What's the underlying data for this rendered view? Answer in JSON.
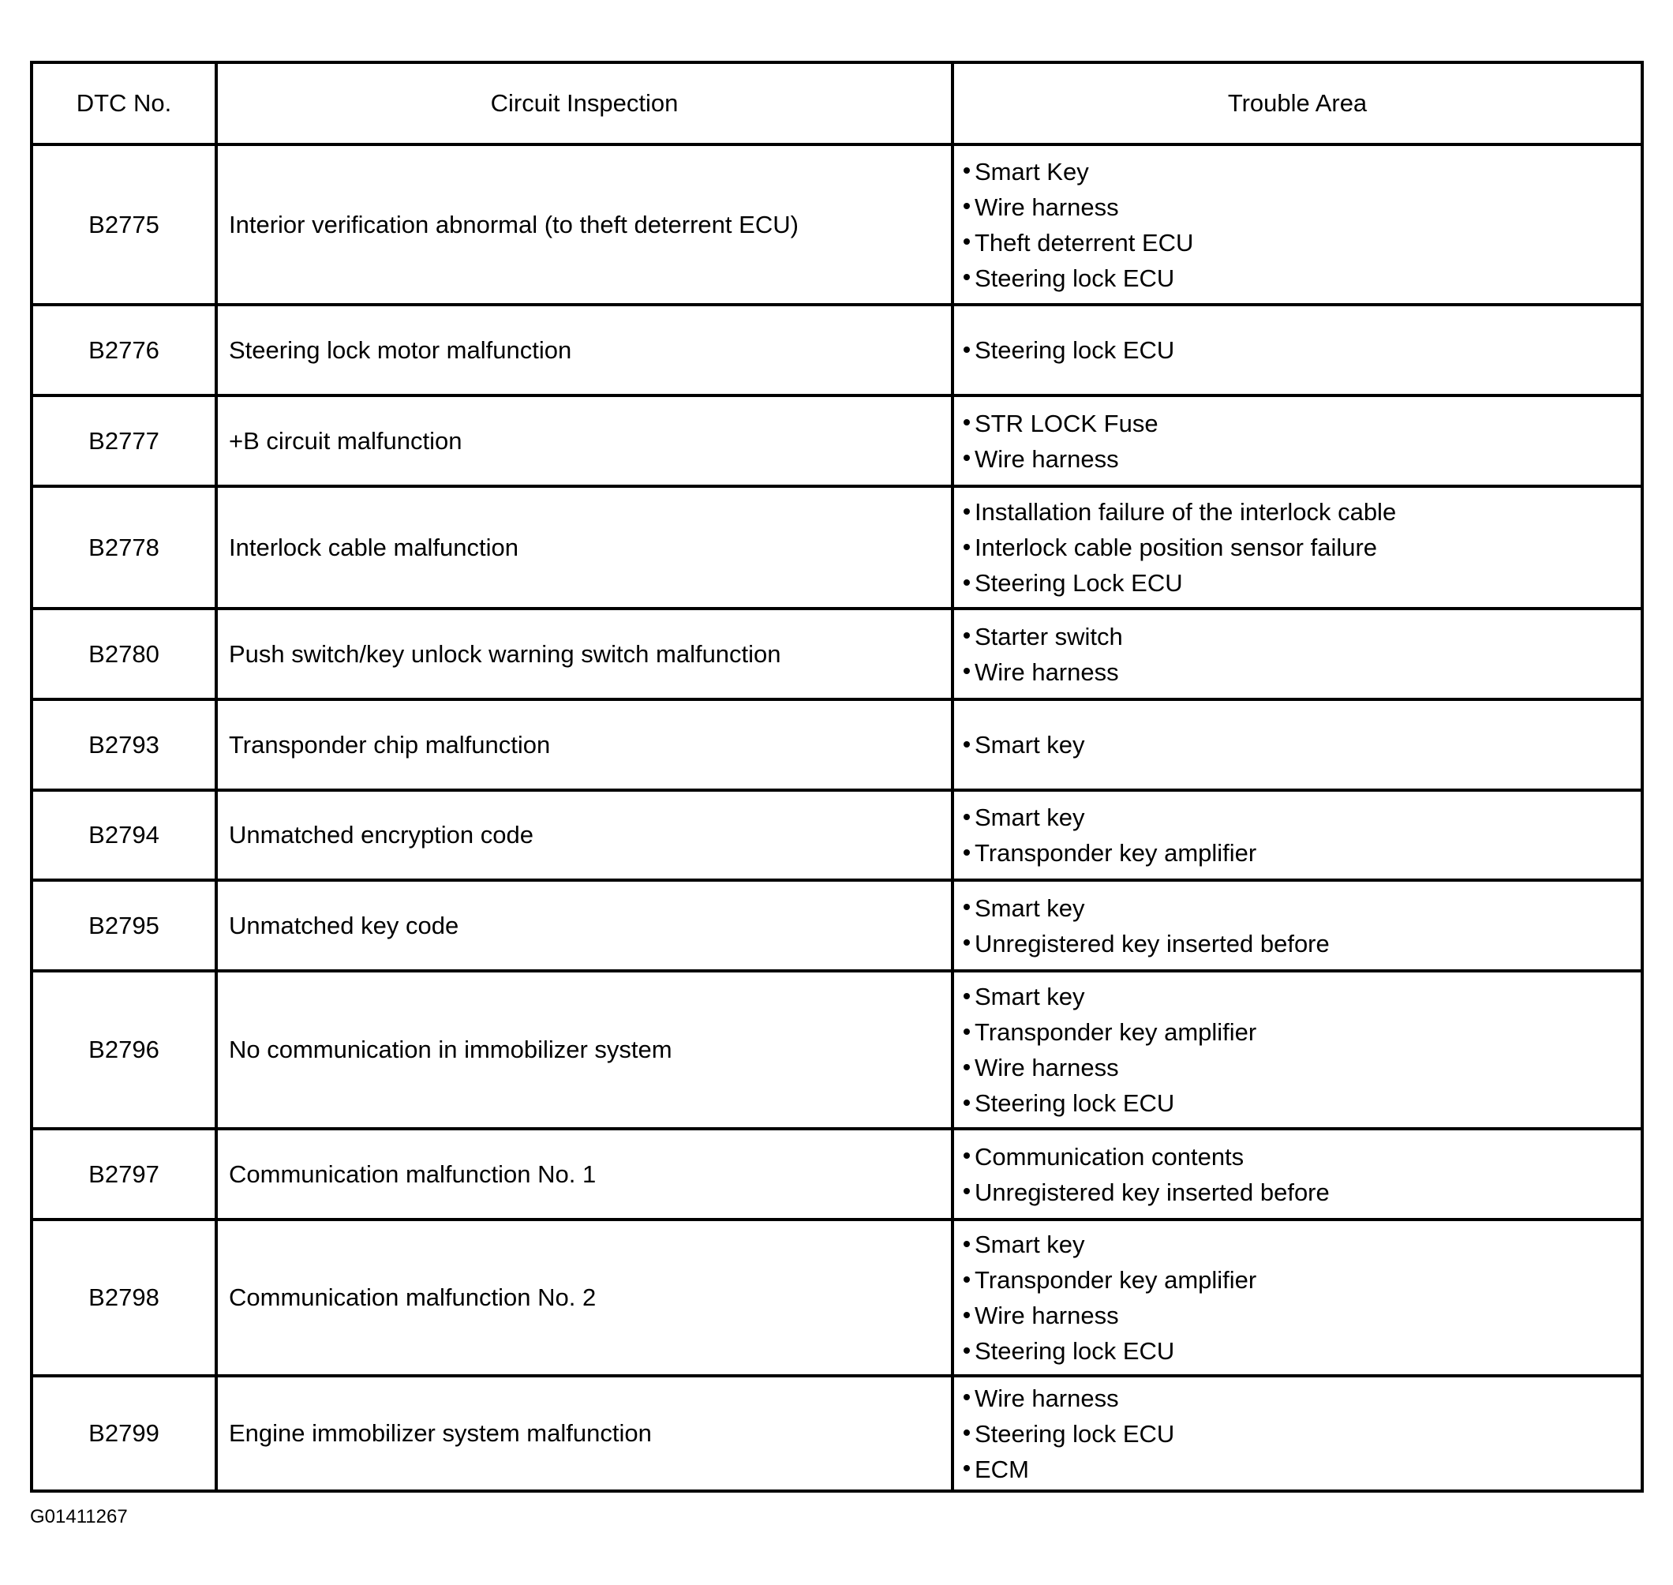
{
  "table": {
    "headers": [
      "DTC No.",
      "Circuit Inspection",
      "Trouble Area"
    ],
    "rows": [
      {
        "dtc": "B2775",
        "inspection": "Interior verification abnormal (to theft deterrent ECU)",
        "areas": [
          "Smart Key",
          "Wire harness",
          "Theft deterrent ECU",
          "Steering lock ECU"
        ]
      },
      {
        "dtc": "B2776",
        "inspection": "Steering lock motor malfunction",
        "areas": [
          "Steering lock ECU"
        ]
      },
      {
        "dtc": "B2777",
        "inspection": "+B circuit malfunction",
        "areas": [
          "STR LOCK Fuse",
          "Wire harness"
        ]
      },
      {
        "dtc": "B2778",
        "inspection": "Interlock cable malfunction",
        "areas": [
          "Installation failure of the interlock cable",
          "Interlock cable position sensor failure",
          "Steering Lock ECU"
        ]
      },
      {
        "dtc": "B2780",
        "inspection": "Push switch/key unlock warning switch malfunction",
        "areas": [
          "Starter switch",
          "Wire harness"
        ]
      },
      {
        "dtc": "B2793",
        "inspection": "Transponder chip malfunction",
        "areas": [
          "Smart key"
        ]
      },
      {
        "dtc": "B2794",
        "inspection": "Unmatched encryption code",
        "areas": [
          "Smart key",
          "Transponder key amplifier"
        ]
      },
      {
        "dtc": "B2795",
        "inspection": "Unmatched key code",
        "areas": [
          "Smart key",
          "Unregistered key inserted before"
        ]
      },
      {
        "dtc": "B2796",
        "inspection": "No communication in immobilizer system",
        "areas": [
          "Smart key",
          "Transponder key amplifier",
          "Wire harness",
          "Steering lock ECU"
        ]
      },
      {
        "dtc": "B2797",
        "inspection": "Communication malfunction No. 1",
        "areas": [
          "Communication contents",
          "Unregistered key inserted before"
        ]
      },
      {
        "dtc": "B2798",
        "inspection": "Communication malfunction No. 2",
        "areas": [
          "Smart key",
          "Transponder key amplifier",
          "Wire harness",
          "Steering lock ECU"
        ]
      },
      {
        "dtc": "B2799",
        "inspection": "Engine immobilizer system malfunction",
        "areas": [
          "Wire harness",
          "Steering lock ECU",
          "ECM"
        ]
      }
    ]
  },
  "figure_id": "G01411267"
}
